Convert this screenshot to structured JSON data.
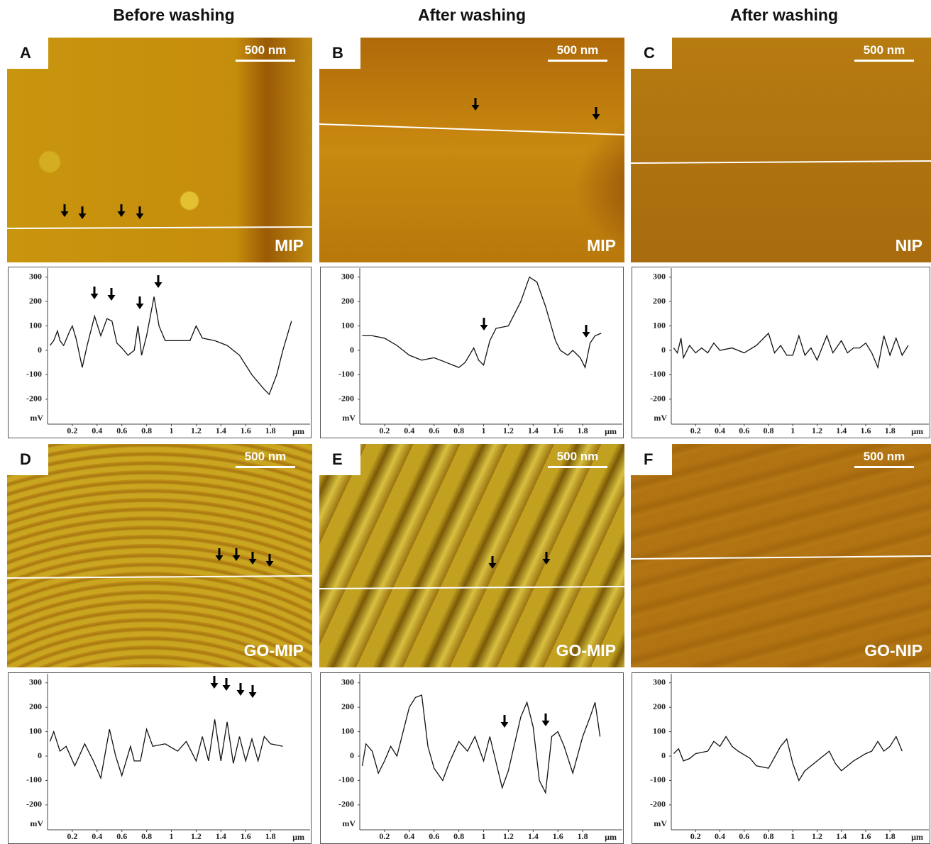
{
  "headers": [
    "Before washing",
    "After washing",
    "After washing"
  ],
  "panels": [
    {
      "letter": "A",
      "scale_bar": "500 nm",
      "sample": "MIP"
    },
    {
      "letter": "B",
      "scale_bar": "500 nm",
      "sample": "MIP"
    },
    {
      "letter": "C",
      "scale_bar": "500 nm",
      "sample": "NIP"
    },
    {
      "letter": "D",
      "scale_bar": "500 nm",
      "sample": "GO-MIP"
    },
    {
      "letter": "E",
      "scale_bar": "500 nm",
      "sample": "GO-MIP"
    },
    {
      "letter": "F",
      "scale_bar": "500 nm",
      "sample": "GO-NIP"
    }
  ],
  "chart_data": [
    {
      "type": "line",
      "y_unit": "mV",
      "x_unit": "µm",
      "xlim": [
        0,
        2.12
      ],
      "ylim": [
        -302,
        337
      ],
      "xticks": [
        0.2,
        0.4,
        0.6,
        0.8,
        1,
        1.2,
        1.4,
        1.6,
        1.8
      ],
      "yticks": [
        300,
        200,
        100,
        0,
        -100,
        -200
      ],
      "color": "#111111",
      "x": [
        0.02,
        0.05,
        0.08,
        0.1,
        0.13,
        0.18,
        0.2,
        0.23,
        0.28,
        0.32,
        0.38,
        0.43,
        0.48,
        0.52,
        0.56,
        0.6,
        0.65,
        0.7,
        0.73,
        0.76,
        0.8,
        0.86,
        0.9,
        0.95,
        1.05,
        1.15,
        1.2,
        1.25,
        1.35,
        1.45,
        1.55,
        1.65,
        1.75,
        1.79,
        1.85,
        1.9,
        1.97
      ],
      "values": [
        20,
        40,
        80,
        40,
        20,
        80,
        100,
        50,
        -70,
        20,
        140,
        60,
        130,
        120,
        30,
        10,
        -20,
        0,
        100,
        -20,
        60,
        220,
        100,
        40,
        40,
        40,
        100,
        50,
        40,
        20,
        -20,
        -100,
        -160,
        -180,
        -100,
        0,
        120
      ]
    },
    {
      "type": "line",
      "y_unit": "mV",
      "x_unit": "µm",
      "xlim": [
        0,
        2.12
      ],
      "ylim": [
        -302,
        337
      ],
      "xticks": [
        0.2,
        0.4,
        0.6,
        0.8,
        1,
        1.2,
        1.4,
        1.6,
        1.8
      ],
      "yticks": [
        300,
        200,
        100,
        0,
        -100,
        -200
      ],
      "color": "#111111",
      "x": [
        0.02,
        0.1,
        0.2,
        0.3,
        0.4,
        0.5,
        0.6,
        0.7,
        0.8,
        0.85,
        0.92,
        0.96,
        1.0,
        1.05,
        1.1,
        1.2,
        1.3,
        1.37,
        1.43,
        1.5,
        1.58,
        1.62,
        1.68,
        1.72,
        1.78,
        1.82,
        1.86,
        1.9,
        1.95
      ],
      "values": [
        60,
        60,
        50,
        20,
        -20,
        -40,
        -30,
        -50,
        -70,
        -50,
        10,
        -40,
        -60,
        40,
        90,
        100,
        200,
        300,
        280,
        180,
        40,
        0,
        -20,
        0,
        -30,
        -70,
        30,
        60,
        70
      ]
    },
    {
      "type": "line",
      "y_unit": "mV",
      "x_unit": "µm",
      "xlim": [
        0,
        2.12
      ],
      "ylim": [
        -302,
        337
      ],
      "xticks": [
        0.2,
        0.4,
        0.6,
        0.8,
        1,
        1.2,
        1.4,
        1.6,
        1.8
      ],
      "yticks": [
        300,
        200,
        100,
        0,
        -100,
        -200
      ],
      "color": "#111111",
      "x": [
        0.02,
        0.05,
        0.08,
        0.1,
        0.15,
        0.2,
        0.25,
        0.3,
        0.35,
        0.4,
        0.5,
        0.6,
        0.7,
        0.8,
        0.85,
        0.9,
        0.95,
        1.0,
        1.05,
        1.1,
        1.15,
        1.2,
        1.28,
        1.33,
        1.4,
        1.45,
        1.5,
        1.55,
        1.6,
        1.65,
        1.7,
        1.75,
        1.8,
        1.85,
        1.9,
        1.95
      ],
      "values": [
        10,
        -10,
        50,
        -30,
        20,
        -10,
        10,
        -10,
        30,
        0,
        10,
        -10,
        20,
        70,
        -10,
        20,
        -20,
        -20,
        60,
        -20,
        10,
        -40,
        60,
        -10,
        40,
        -10,
        10,
        10,
        30,
        -10,
        -70,
        60,
        -20,
        50,
        -20,
        20
      ]
    },
    {
      "type": "line",
      "y_unit": "mV",
      "x_unit": "µm",
      "xlim": [
        0,
        2.12
      ],
      "ylim": [
        -302,
        337
      ],
      "xticks": [
        0.2,
        0.4,
        0.6,
        0.8,
        1,
        1.2,
        1.4,
        1.6,
        1.8
      ],
      "yticks": [
        300,
        200,
        100,
        0,
        -100,
        -200
      ],
      "color": "#111111",
      "x": [
        0.02,
        0.05,
        0.1,
        0.15,
        0.22,
        0.3,
        0.37,
        0.43,
        0.5,
        0.55,
        0.6,
        0.67,
        0.7,
        0.75,
        0.8,
        0.85,
        0.95,
        1.05,
        1.12,
        1.2,
        1.25,
        1.3,
        1.35,
        1.4,
        1.45,
        1.5,
        1.55,
        1.6,
        1.65,
        1.7,
        1.75,
        1.8,
        1.9
      ],
      "values": [
        60,
        100,
        20,
        40,
        -40,
        50,
        -20,
        -90,
        110,
        0,
        -80,
        40,
        -20,
        -20,
        110,
        40,
        50,
        20,
        60,
        -20,
        80,
        -20,
        150,
        -20,
        140,
        -30,
        80,
        -20,
        70,
        -20,
        80,
        50,
        40
      ]
    },
    {
      "type": "line",
      "y_unit": "mV",
      "x_unit": "µm",
      "xlim": [
        0,
        2.12
      ],
      "ylim": [
        -302,
        337
      ],
      "xticks": [
        0.2,
        0.4,
        0.6,
        0.8,
        1,
        1.2,
        1.4,
        1.6,
        1.8
      ],
      "yticks": [
        300,
        200,
        100,
        0,
        -100,
        -200
      ],
      "color": "#111111",
      "x": [
        0.02,
        0.05,
        0.1,
        0.15,
        0.2,
        0.25,
        0.3,
        0.35,
        0.4,
        0.45,
        0.5,
        0.55,
        0.6,
        0.67,
        0.72,
        0.8,
        0.87,
        0.93,
        1.0,
        1.05,
        1.15,
        1.2,
        1.3,
        1.35,
        1.4,
        1.45,
        1.5,
        1.55,
        1.6,
        1.65,
        1.72,
        1.8,
        1.86,
        1.9,
        1.94
      ],
      "values": [
        -40,
        50,
        20,
        -70,
        -20,
        40,
        0,
        100,
        200,
        240,
        250,
        40,
        -50,
        -100,
        -30,
        60,
        20,
        80,
        -20,
        80,
        -130,
        -60,
        160,
        220,
        120,
        -100,
        -150,
        80,
        100,
        40,
        -70,
        80,
        160,
        220,
        80
      ]
    },
    {
      "type": "line",
      "y_unit": "mV",
      "x_unit": "µm",
      "xlim": [
        0,
        2.12
      ],
      "ylim": [
        -302,
        337
      ],
      "xticks": [
        0.2,
        0.4,
        0.6,
        0.8,
        1,
        1.2,
        1.4,
        1.6,
        1.8
      ],
      "yticks": [
        300,
        200,
        100,
        0,
        -100,
        -200
      ],
      "color": "#111111",
      "x": [
        0.02,
        0.06,
        0.1,
        0.15,
        0.2,
        0.3,
        0.35,
        0.4,
        0.45,
        0.5,
        0.55,
        0.65,
        0.7,
        0.8,
        0.9,
        0.95,
        1.0,
        1.05,
        1.1,
        1.2,
        1.3,
        1.35,
        1.4,
        1.5,
        1.6,
        1.65,
        1.7,
        1.75,
        1.8,
        1.85,
        1.9
      ],
      "values": [
        10,
        30,
        -20,
        -10,
        10,
        20,
        60,
        40,
        80,
        40,
        20,
        -10,
        -40,
        -50,
        40,
        70,
        -30,
        -100,
        -60,
        -20,
        20,
        -30,
        -60,
        -20,
        10,
        20,
        60,
        20,
        40,
        80,
        20
      ]
    }
  ]
}
